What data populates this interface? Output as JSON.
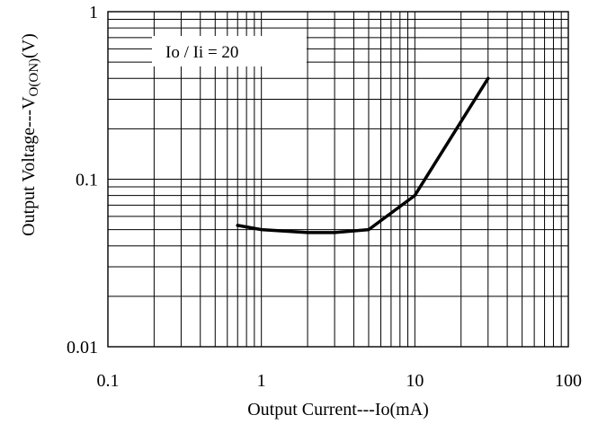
{
  "chart_data": {
    "type": "line",
    "title": "",
    "xlabel": "Output Current---Io(mA)",
    "ylabel_main": "Output Voltage---V",
    "ylabel_sub": "O(ON)",
    "ylabel_end": "(V)",
    "x_scale": "log",
    "y_scale": "log",
    "xlim": [
      0.1,
      100
    ],
    "ylim": [
      0.01,
      1
    ],
    "grid": true,
    "x_ticks": [
      {
        "value": 0.1,
        "label": "0.1"
      },
      {
        "value": 1,
        "label": "1"
      },
      {
        "value": 10,
        "label": "10"
      },
      {
        "value": 100,
        "label": "100"
      }
    ],
    "y_ticks": [
      {
        "value": 0.01,
        "label": "0.01"
      },
      {
        "value": 0.1,
        "label": "0.1"
      },
      {
        "value": 1,
        "label": "1"
      }
    ],
    "annotation": "Io / Ii = 20",
    "series": [
      {
        "x": [
          0.7,
          1,
          2,
          3,
          5,
          10,
          30
        ],
        "y": [
          0.053,
          0.05,
          0.048,
          0.048,
          0.05,
          0.08,
          0.4
        ]
      }
    ]
  }
}
